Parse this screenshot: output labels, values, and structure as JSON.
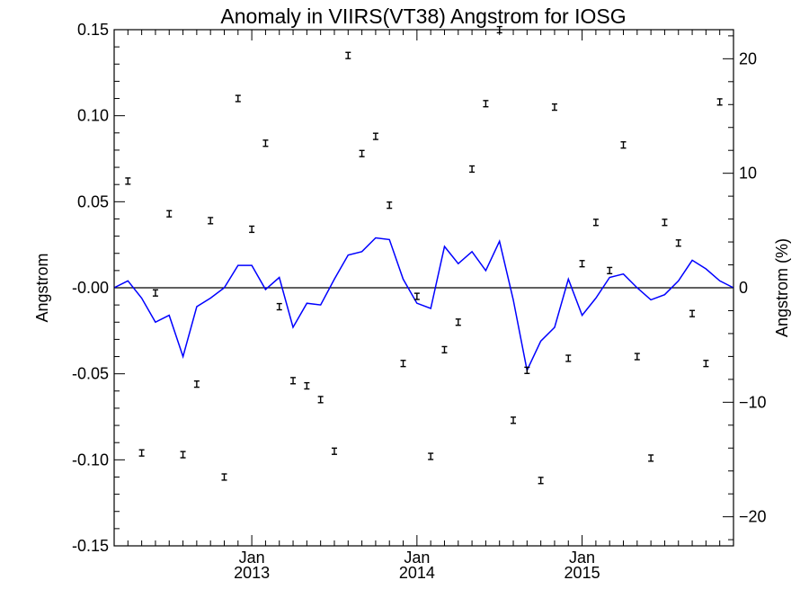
{
  "chart_data": {
    "type": "line",
    "title": "Anomaly in VIIRS(VT38) Angstrom for IOSG",
    "ylabel": "Angstrom",
    "ylabel_right": "Angstrom (%)",
    "ylim": [
      -0.15,
      0.15
    ],
    "ylim_right": [
      -22.54,
      22.54
    ],
    "xlim": [
      "2012-03",
      "2015-12"
    ],
    "yticks": [
      "0.15",
      "0.10",
      "0.05",
      "-0.00",
      "-0.05",
      "-0.10",
      "-0.15"
    ],
    "yticks_right": [
      "20",
      "10",
      "0",
      "−10",
      "−20"
    ],
    "xticks": [
      {
        "month": "Jan",
        "year": "2013",
        "x": "2013-01"
      },
      {
        "month": "Jan",
        "year": "2014",
        "x": "2014-01"
      },
      {
        "month": "Jan",
        "year": "2015",
        "x": "2015-01"
      }
    ],
    "reference_line": 0,
    "line_color": "#0000ff",
    "line": {
      "x": [
        "2012-03",
        "2012-04",
        "2012-05",
        "2012-06",
        "2012-07",
        "2012-08",
        "2012-09",
        "2012-10",
        "2012-11",
        "2012-12",
        "2013-01",
        "2013-02",
        "2013-03",
        "2013-04",
        "2013-05",
        "2013-06",
        "2013-07",
        "2013-08",
        "2013-09",
        "2013-10",
        "2013-11",
        "2013-12",
        "2014-01",
        "2014-02",
        "2014-03",
        "2014-04",
        "2014-05",
        "2014-06",
        "2014-07",
        "2014-08",
        "2014-09",
        "2014-10",
        "2014-11",
        "2014-12",
        "2015-01",
        "2015-02",
        "2015-03",
        "2015-04",
        "2015-05",
        "2015-06",
        "2015-07",
        "2015-08",
        "2015-09",
        "2015-10",
        "2015-11",
        "2015-12"
      ],
      "y": [
        0.0,
        0.004,
        -0.006,
        -0.02,
        -0.016,
        -0.04,
        -0.011,
        -0.006,
        0.0,
        0.013,
        0.013,
        -0.001,
        0.006,
        -0.023,
        -0.009,
        -0.01,
        0.005,
        0.019,
        0.021,
        0.029,
        0.028,
        0.005,
        -0.009,
        -0.012,
        0.024,
        0.014,
        0.021,
        0.01,
        0.027,
        -0.007,
        -0.048,
        -0.031,
        -0.023,
        0.005,
        -0.016,
        -0.006,
        0.006,
        0.008,
        0.0,
        -0.007,
        -0.004,
        0.004,
        0.016,
        0.011,
        0.004,
        0.0
      ]
    },
    "points": {
      "x": [
        "2012-04",
        "2012-05",
        "2012-06",
        "2012-07",
        "2012-08",
        "2012-09",
        "2012-10",
        "2012-11",
        "2012-12",
        "2013-01",
        "2013-02",
        "2013-03",
        "2013-04",
        "2013-05",
        "2013-06",
        "2013-07",
        "2013-08",
        "2013-09",
        "2013-10",
        "2013-11",
        "2013-12",
        "2014-01",
        "2014-02",
        "2014-03",
        "2014-04",
        "2014-05",
        "2014-06",
        "2014-07",
        "2014-08",
        "2014-09",
        "2014-10",
        "2014-11",
        "2014-12",
        "2015-01",
        "2015-02",
        "2015-03",
        "2015-04",
        "2015-05",
        "2015-06",
        "2015-07",
        "2015-08",
        "2015-09",
        "2015-10",
        "2015-11"
      ],
      "y": [
        0.062,
        -0.096,
        -0.003,
        0.043,
        -0.097,
        -0.056,
        0.039,
        -0.11,
        0.11,
        0.034,
        0.084,
        -0.011,
        -0.054,
        -0.057,
        -0.065,
        -0.095,
        0.135,
        0.078,
        0.088,
        0.048,
        -0.044,
        -0.005,
        -0.098,
        -0.036,
        -0.02,
        0.069,
        0.107,
        0.15,
        -0.077,
        -0.048,
        -0.112,
        0.105,
        -0.041,
        0.014,
        0.038,
        0.01,
        0.083,
        -0.04,
        -0.099,
        0.038,
        0.026,
        -0.015,
        -0.044,
        0.108
      ],
      "error": 0.0018
    },
    "grid": false,
    "legend": "none"
  }
}
